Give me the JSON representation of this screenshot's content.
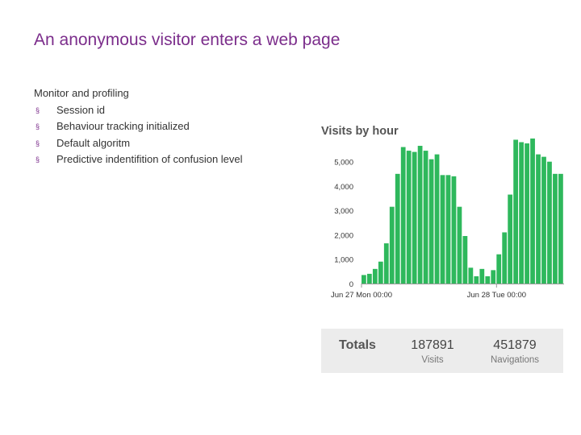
{
  "slide": {
    "title": "An anonymous visitor enters a web page",
    "intro": "Monitor and profiling",
    "bullet_marker": "§",
    "bullets": [
      "Session id",
      "Behaviour tracking initialized",
      "Default algoritm",
      "Predictive indentifition of confusion level"
    ]
  },
  "colors": {
    "title": "#7b2d8b",
    "bar": "#2eb85c",
    "totals_bg": "#ececec"
  },
  "chart_data": {
    "type": "bar",
    "title": "Visits by hour",
    "xlabel": "",
    "ylabel": "",
    "ylim": [
      0,
      5750
    ],
    "yticks": [
      0,
      1000,
      2000,
      3000,
      4000,
      5000
    ],
    "ytick_labels": [
      "0",
      "1,000",
      "2,000",
      "3,000",
      "4,000",
      "5,000"
    ],
    "grid": false,
    "xtick_labels": [
      {
        "label": "Jun 27 Mon 00:00",
        "index": 0
      },
      {
        "label": "Jun 28 Tue 00:00",
        "index": 24
      }
    ],
    "values": [
      350,
      400,
      600,
      900,
      1650,
      3150,
      4500,
      5600,
      5450,
      5400,
      5650,
      5450,
      5100,
      5300,
      4450,
      4450,
      4400,
      3150,
      1950,
      650,
      300,
      600,
      300,
      550,
      1200,
      2100,
      3650,
      5900,
      5800,
      5750,
      5950,
      5300,
      5200,
      5000,
      4500,
      4500
    ]
  },
  "totals": {
    "label": "Totals",
    "visits_value": "187891",
    "visits_label": "Visits",
    "navigations_value": "451879",
    "navigations_label": "Navigations"
  }
}
